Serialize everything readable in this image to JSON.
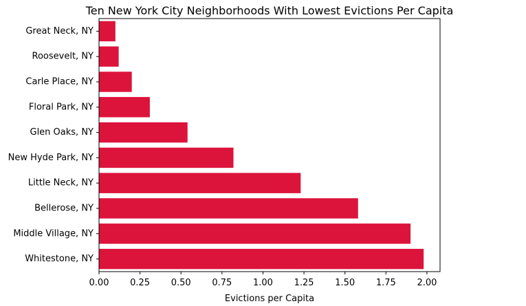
{
  "chart_data": {
    "type": "bar",
    "orientation": "horizontal",
    "title": "Ten New York City Neighborhoods With Lowest Evictions Per Capita",
    "xlabel": "Evictions per Capita",
    "ylabel": "",
    "xlim": [
      0,
      2.08
    ],
    "xticks": [
      "0.00",
      "0.25",
      "0.50",
      "0.75",
      "1.00",
      "1.25",
      "1.50",
      "1.75",
      "2.00"
    ],
    "categories": [
      "Great Neck, NY",
      "Roosevelt, NY",
      "Carle Place, NY",
      "Floral Park, NY",
      "Glen Oaks, NY",
      "New Hyde Park, NY",
      "Little Neck, NY",
      "Bellerose, NY",
      "Middle Village, NY",
      "Whitestone, NY"
    ],
    "values": [
      0.1,
      0.12,
      0.2,
      0.31,
      0.54,
      0.82,
      1.23,
      1.58,
      1.9,
      1.98
    ],
    "bar_color": "#dc143c",
    "grid": false,
    "legend": "none"
  }
}
